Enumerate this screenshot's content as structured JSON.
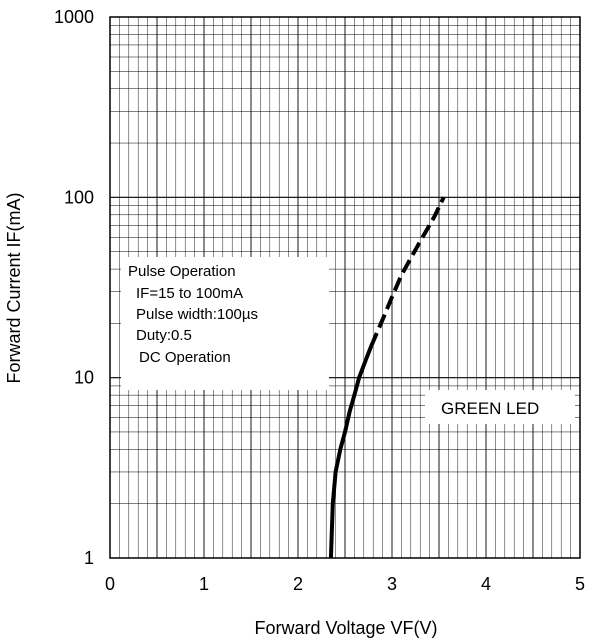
{
  "chart_data": {
    "type": "line",
    "xlabel": "Forward Voltage VF(V)",
    "ylabel": "Forward Current IF(mA)",
    "xlim": [
      0,
      5
    ],
    "ylim": [
      1,
      1000
    ],
    "yscale": "log",
    "grid": true,
    "x_ticks": [
      "0",
      "1",
      "2",
      "3",
      "4",
      "5"
    ],
    "y_ticks": [
      "1",
      "10",
      "100",
      "1000"
    ],
    "series": [
      {
        "name": "DC Operation",
        "line_style": "solid",
        "x": [
          2.35,
          2.37,
          2.4,
          2.45,
          2.5,
          2.55,
          2.6,
          2.65,
          2.72,
          2.78
        ],
        "y": [
          1,
          2,
          3,
          4,
          5,
          6.5,
          8,
          10,
          12.5,
          15
        ]
      },
      {
        "name": "Pulse Operation",
        "line_style": "dashed",
        "x": [
          2.78,
          2.9,
          3.0,
          3.1,
          3.2,
          3.3,
          3.45,
          3.55
        ],
        "y": [
          15,
          21,
          28,
          37,
          46,
          57,
          78,
          100
        ]
      }
    ],
    "annotations": {
      "legend_lines": [
        "Pulse Operation",
        "IF=15 to 100mA",
        "Pulse width:100µs",
        "Duty:0.5",
        "DC Operation"
      ],
      "label": "GREEN LED"
    }
  }
}
